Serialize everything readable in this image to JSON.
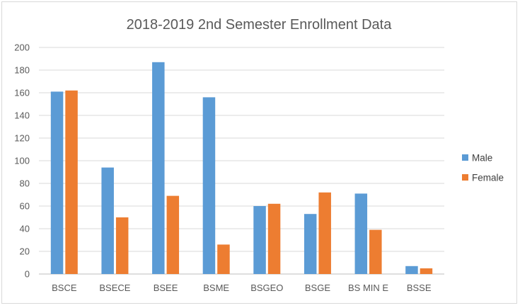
{
  "chart_data": {
    "type": "bar",
    "title": "2018-2019 2nd Semester Enrollment Data",
    "xlabel": "",
    "ylabel": "",
    "ylim": [
      0,
      200
    ],
    "yticks": [
      0,
      20,
      40,
      60,
      80,
      100,
      120,
      140,
      160,
      180,
      200
    ],
    "grid": true,
    "legend_position": "right",
    "categories": [
      "BSCE",
      "BSECE",
      "BSEE",
      "BSME",
      "BSGEO",
      "BSGE",
      "BS MIN E",
      "BSSE"
    ],
    "series": [
      {
        "name": "Male",
        "color": "#5b9bd5",
        "values": [
          161,
          94,
          187,
          156,
          60,
          53,
          71,
          7
        ]
      },
      {
        "name": "Female",
        "color": "#ed7d31",
        "values": [
          162,
          50,
          69,
          26,
          62,
          72,
          39,
          5
        ]
      }
    ]
  }
}
